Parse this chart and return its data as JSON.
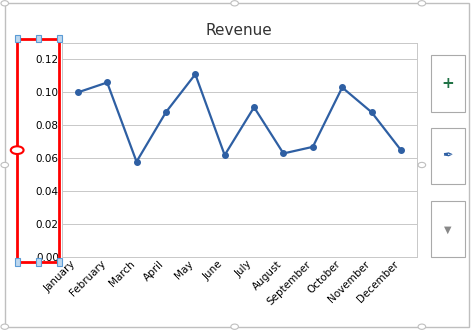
{
  "title": "Revenue",
  "months": [
    "January",
    "February",
    "March",
    "April",
    "May",
    "June",
    "July",
    "August",
    "September",
    "October",
    "November",
    "December"
  ],
  "values": [
    0.1,
    0.106,
    0.058,
    0.088,
    0.111,
    0.062,
    0.091,
    0.063,
    0.067,
    0.103,
    0.088,
    0.065
  ],
  "line_color": "#2E5FA3",
  "marker_color": "#2E5FA3",
  "ylim": [
    0.0,
    0.13
  ],
  "yticks": [
    0.0,
    0.02,
    0.04,
    0.06,
    0.08,
    0.1,
    0.12
  ],
  "background_color": "#FFFFFF",
  "plot_bg_color": "#FFFFFF",
  "grid_color": "#C8C8C8",
  "outer_border_color": "#BFBFBF",
  "title_fontsize": 11,
  "tick_fontsize": 7.5,
  "line_width": 1.6,
  "marker_size": 4,
  "red_box_color": "#FF0000",
  "red_box_inner_color": "#C8DEFF",
  "excel_panel_color": "#F2F2F2",
  "excel_icon_plus": "#217346",
  "excel_icon_pen": "#2E5FA3",
  "excel_icon_filter": "#888888"
}
